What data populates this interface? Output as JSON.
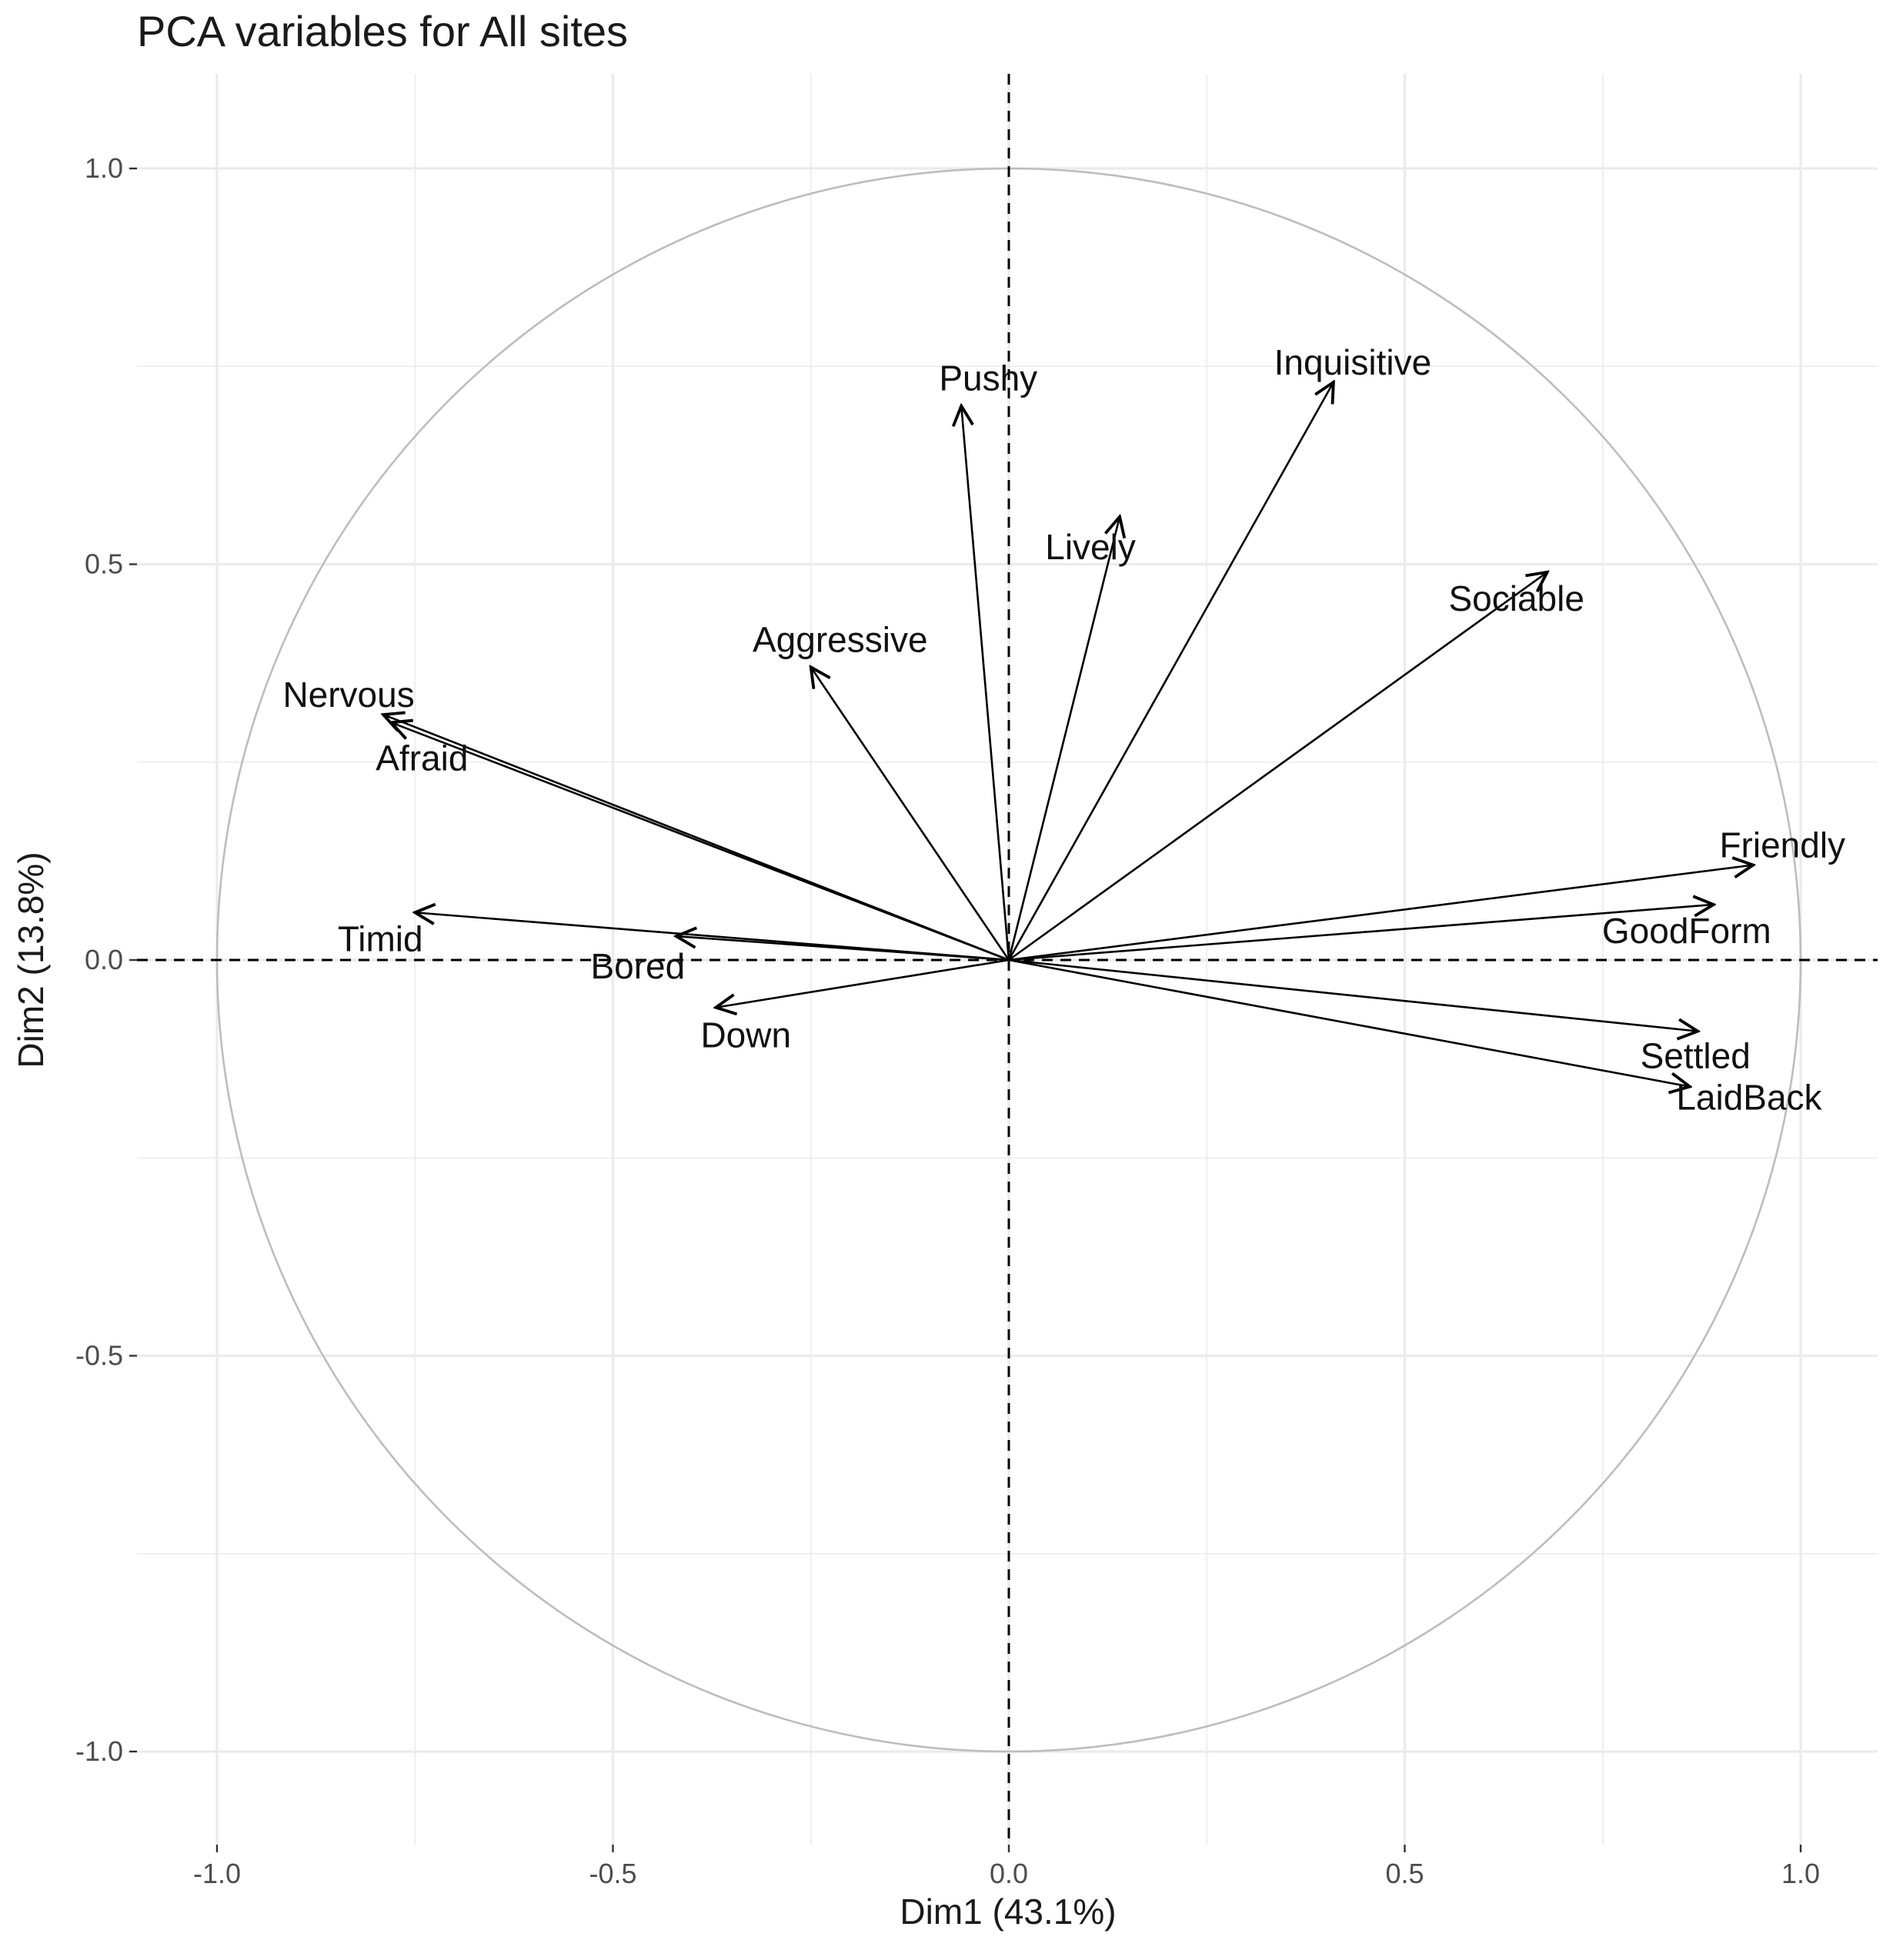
{
  "chart_data": {
    "type": "scatter",
    "subtype": "pca-correlation-circle",
    "title": "PCA variables for All sites",
    "xlabel": "Dim1 (43.1%)",
    "ylabel": "Dim2 (13.8%)",
    "xlim": [
      -1.05,
      1.05
    ],
    "ylim": [
      -1.05,
      1.05
    ],
    "x_ticks": [
      -1.0,
      -0.5,
      0.0,
      0.5,
      1.0
    ],
    "x_tick_labels": [
      "-1.0",
      "-0.5",
      "0.0",
      "0.5",
      "1.0"
    ],
    "y_ticks": [
      -1.0,
      -0.5,
      0.0,
      0.5,
      1.0
    ],
    "y_tick_labels": [
      "-1.0",
      "-0.5",
      "0.0",
      "0.5",
      "1.0"
    ],
    "grid": true,
    "unit_circle": true,
    "reference_lines": [
      "x=0 dashed",
      "y=0 dashed"
    ],
    "variables": [
      {
        "name": "Pushy",
        "x": -0.06,
        "y": 0.7
      },
      {
        "name": "Inquisitive",
        "x": 0.41,
        "y": 0.73
      },
      {
        "name": "Lively",
        "x": 0.14,
        "y": 0.56
      },
      {
        "name": "Sociable",
        "x": 0.68,
        "y": 0.49
      },
      {
        "name": "Aggressive",
        "x": -0.25,
        "y": 0.37
      },
      {
        "name": "Nervous",
        "x": -0.79,
        "y": 0.31
      },
      {
        "name": "Afraid",
        "x": -0.78,
        "y": 0.3
      },
      {
        "name": "Friendly",
        "x": 0.94,
        "y": 0.12
      },
      {
        "name": "GoodForm",
        "x": 0.89,
        "y": 0.07
      },
      {
        "name": "Timid",
        "x": -0.75,
        "y": 0.06
      },
      {
        "name": "Bored",
        "x": -0.42,
        "y": 0.03
      },
      {
        "name": "Down",
        "x": -0.37,
        "y": -0.06
      },
      {
        "name": "Settled",
        "x": 0.87,
        "y": -0.09
      },
      {
        "name": "LaidBack",
        "x": 0.86,
        "y": -0.16
      }
    ],
    "colors": {
      "arrow": "#000000",
      "circle": "#bdbdbd",
      "grid": "#ebebeb",
      "reference": "#000000"
    }
  }
}
